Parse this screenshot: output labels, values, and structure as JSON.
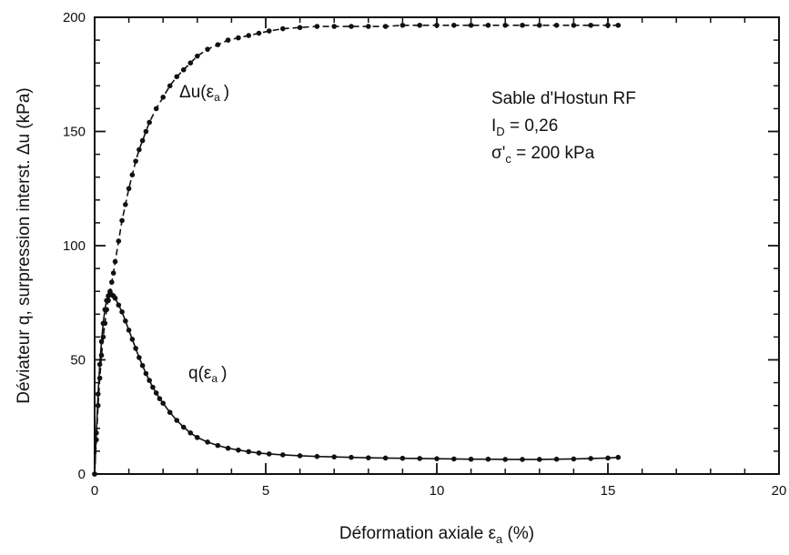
{
  "chart_data": {
    "type": "line",
    "title": "",
    "xlabel": "Déformation axiale ε",
    "xlabel_sub": "a",
    "xlabel_unit": " (%)",
    "ylabel": "Déviateur q, surpression interst. Δu (kPa)",
    "xlim": [
      0,
      20
    ],
    "ylim": [
      0,
      200
    ],
    "x_major_ticks": [
      0,
      5,
      10,
      15,
      20
    ],
    "x_tick_labels": [
      "0",
      "5",
      "10",
      "15",
      "20"
    ],
    "y_major_ticks": [
      0,
      50,
      100,
      150,
      200
    ],
    "y_tick_labels": [
      "0",
      "50",
      "100",
      "150",
      "200"
    ],
    "x_minor_step": 1,
    "y_minor_step": 10,
    "grid": false,
    "series": [
      {
        "name": "Δu(εa)",
        "label_main": "Δu(ε",
        "label_sub": "a",
        "label_close": ")",
        "style": "dashed-with-markers",
        "x": [
          0,
          0.05,
          0.1,
          0.15,
          0.2,
          0.25,
          0.3,
          0.35,
          0.4,
          0.45,
          0.5,
          0.55,
          0.6,
          0.7,
          0.8,
          0.9,
          1.0,
          1.1,
          1.2,
          1.3,
          1.4,
          1.5,
          1.6,
          1.8,
          2.0,
          2.2,
          2.4,
          2.6,
          2.8,
          3.0,
          3.3,
          3.6,
          3.9,
          4.2,
          4.5,
          4.8,
          5.1,
          5.5,
          6.0,
          6.5,
          7.0,
          7.5,
          8.0,
          8.5,
          9.0,
          9.5,
          10.0,
          10.5,
          11.0,
          11.5,
          12.0,
          12.5,
          13.0,
          13.5,
          14.0,
          14.5,
          15.0,
          15.3
        ],
        "y": [
          0,
          15,
          30,
          42,
          52,
          60,
          66,
          72,
          76,
          80,
          84,
          88,
          93,
          102,
          111,
          118,
          125,
          131,
          137,
          142,
          146,
          150,
          154,
          160,
          165,
          170,
          174,
          177,
          180,
          183,
          186,
          188,
          190,
          191,
          192,
          193,
          194,
          195,
          195.5,
          196,
          196,
          196,
          196,
          196,
          196.5,
          196.5,
          196.5,
          196.5,
          196.5,
          196.5,
          196.5,
          196.5,
          196.5,
          196.5,
          196.5,
          196.5,
          196.5,
          196.5
        ]
      },
      {
        "name": "q(εa)",
        "label_main": "q(ε",
        "label_sub": "a",
        "label_close": ")",
        "style": "solid-with-markers",
        "x": [
          0,
          0.05,
          0.1,
          0.15,
          0.2,
          0.25,
          0.3,
          0.35,
          0.4,
          0.45,
          0.5,
          0.55,
          0.6,
          0.7,
          0.8,
          0.9,
          1.0,
          1.1,
          1.2,
          1.3,
          1.4,
          1.5,
          1.6,
          1.7,
          1.8,
          1.9,
          2.0,
          2.2,
          2.4,
          2.6,
          2.8,
          3.0,
          3.3,
          3.6,
          3.9,
          4.2,
          4.5,
          4.8,
          5.1,
          5.5,
          6.0,
          6.5,
          7.0,
          7.5,
          8.0,
          8.5,
          9.0,
          9.5,
          10.0,
          10.5,
          11.0,
          11.5,
          12.0,
          12.5,
          13.0,
          13.5,
          14.0,
          14.5,
          15.0,
          15.3
        ],
        "y": [
          0,
          18,
          35,
          48,
          58,
          66,
          72,
          76,
          78,
          79,
          78.5,
          78,
          77,
          74,
          71,
          67,
          63,
          59,
          55,
          51,
          47.5,
          44,
          41,
          38,
          35.5,
          33,
          31,
          27,
          23.5,
          20.5,
          18,
          16,
          14,
          12.5,
          11.3,
          10.5,
          9.8,
          9.2,
          8.8,
          8.4,
          8.0,
          7.7,
          7.5,
          7.3,
          7.1,
          7.0,
          6.9,
          6.8,
          6.7,
          6.6,
          6.5,
          6.5,
          6.4,
          6.4,
          6.4,
          6.5,
          6.6,
          6.8,
          7.0,
          7.3
        ]
      }
    ],
    "annotation_lines": [
      {
        "main": "Sable d'Hostun RF"
      },
      {
        "main": "I",
        "sub": "D",
        "rest": " = 0,26"
      },
      {
        "main": "σ'",
        "sub": "c",
        "rest": " = 200 kPa"
      }
    ],
    "colors": {
      "ink": "#111111",
      "background": "#ffffff"
    }
  }
}
